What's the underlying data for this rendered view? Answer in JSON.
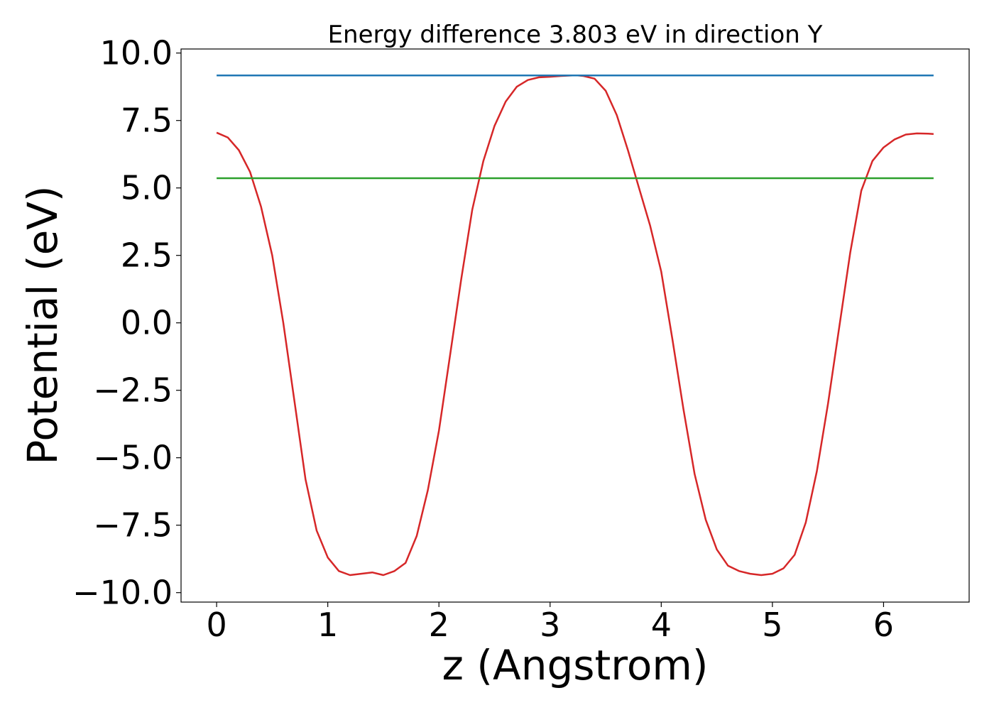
{
  "chart_data": {
    "type": "line",
    "title": "Energy difference 3.803 eV in direction Y",
    "xlabel": "z (Angstrom)",
    "ylabel": "Potential (eV)",
    "xlim": [
      -0.32,
      6.77
    ],
    "ylim": [
      -10.35,
      10.15
    ],
    "xticks": [
      0,
      1,
      2,
      3,
      4,
      5,
      6
    ],
    "xtick_labels": [
      "0",
      "1",
      "2",
      "3",
      "4",
      "5",
      "6"
    ],
    "yticks": [
      -10,
      -7.5,
      -5,
      -2.5,
      0,
      2.5,
      5,
      7.5,
      10
    ],
    "ytick_labels": [
      "−10.0",
      "−7.5",
      "−5.0",
      "−2.5",
      "0.0",
      "2.5",
      "5.0",
      "7.5",
      "10.0"
    ],
    "grid": false,
    "legend": "none",
    "series": [
      {
        "color": "#d62728",
        "x": [
          0,
          0.1,
          0.2,
          0.3,
          0.4,
          0.5,
          0.6,
          0.7,
          0.8,
          0.9,
          1.0,
          1.1,
          1.2,
          1.3,
          1.4,
          1.5,
          1.6,
          1.7,
          1.8,
          1.9,
          2.0,
          2.1,
          2.2,
          2.3,
          2.4,
          2.5,
          2.6,
          2.7,
          2.8,
          2.9,
          3.0,
          3.1,
          3.2,
          3.25,
          3.3,
          3.4,
          3.5,
          3.6,
          3.7,
          3.8,
          3.9,
          4.0,
          4.1,
          4.2,
          4.3,
          4.4,
          4.5,
          4.6,
          4.7,
          4.8,
          4.9,
          5.0,
          5.1,
          5.2,
          5.3,
          5.4,
          5.5,
          5.6,
          5.7,
          5.8,
          5.9,
          6.0,
          6.1,
          6.2,
          6.3,
          6.4,
          6.45
        ],
        "y": [
          7.05,
          6.87,
          6.4,
          5.6,
          4.3,
          2.5,
          0.0,
          -2.9,
          -5.8,
          -7.7,
          -8.7,
          -9.2,
          -9.35,
          -9.3,
          -9.25,
          -9.35,
          -9.2,
          -8.9,
          -7.9,
          -6.2,
          -4.0,
          -1.2,
          1.6,
          4.2,
          6.0,
          7.3,
          8.2,
          8.75,
          9.0,
          9.1,
          9.12,
          9.15,
          9.17,
          9.17,
          9.15,
          9.05,
          8.6,
          7.7,
          6.4,
          5.0,
          3.6,
          1.9,
          -0.6,
          -3.2,
          -5.6,
          -7.3,
          -8.4,
          -9.0,
          -9.2,
          -9.3,
          -9.35,
          -9.3,
          -9.1,
          -8.6,
          -7.4,
          -5.5,
          -3.0,
          -0.2,
          2.6,
          4.9,
          6.0,
          6.5,
          6.8,
          6.98,
          7.02,
          7.01,
          7.0
        ]
      },
      {
        "color": "#1f77b4",
        "x": [
          0,
          6.45
        ],
        "y": [
          9.17,
          9.17
        ]
      },
      {
        "color": "#2ca02c",
        "x": [
          0,
          6.45
        ],
        "y": [
          5.36,
          5.36
        ]
      }
    ]
  }
}
